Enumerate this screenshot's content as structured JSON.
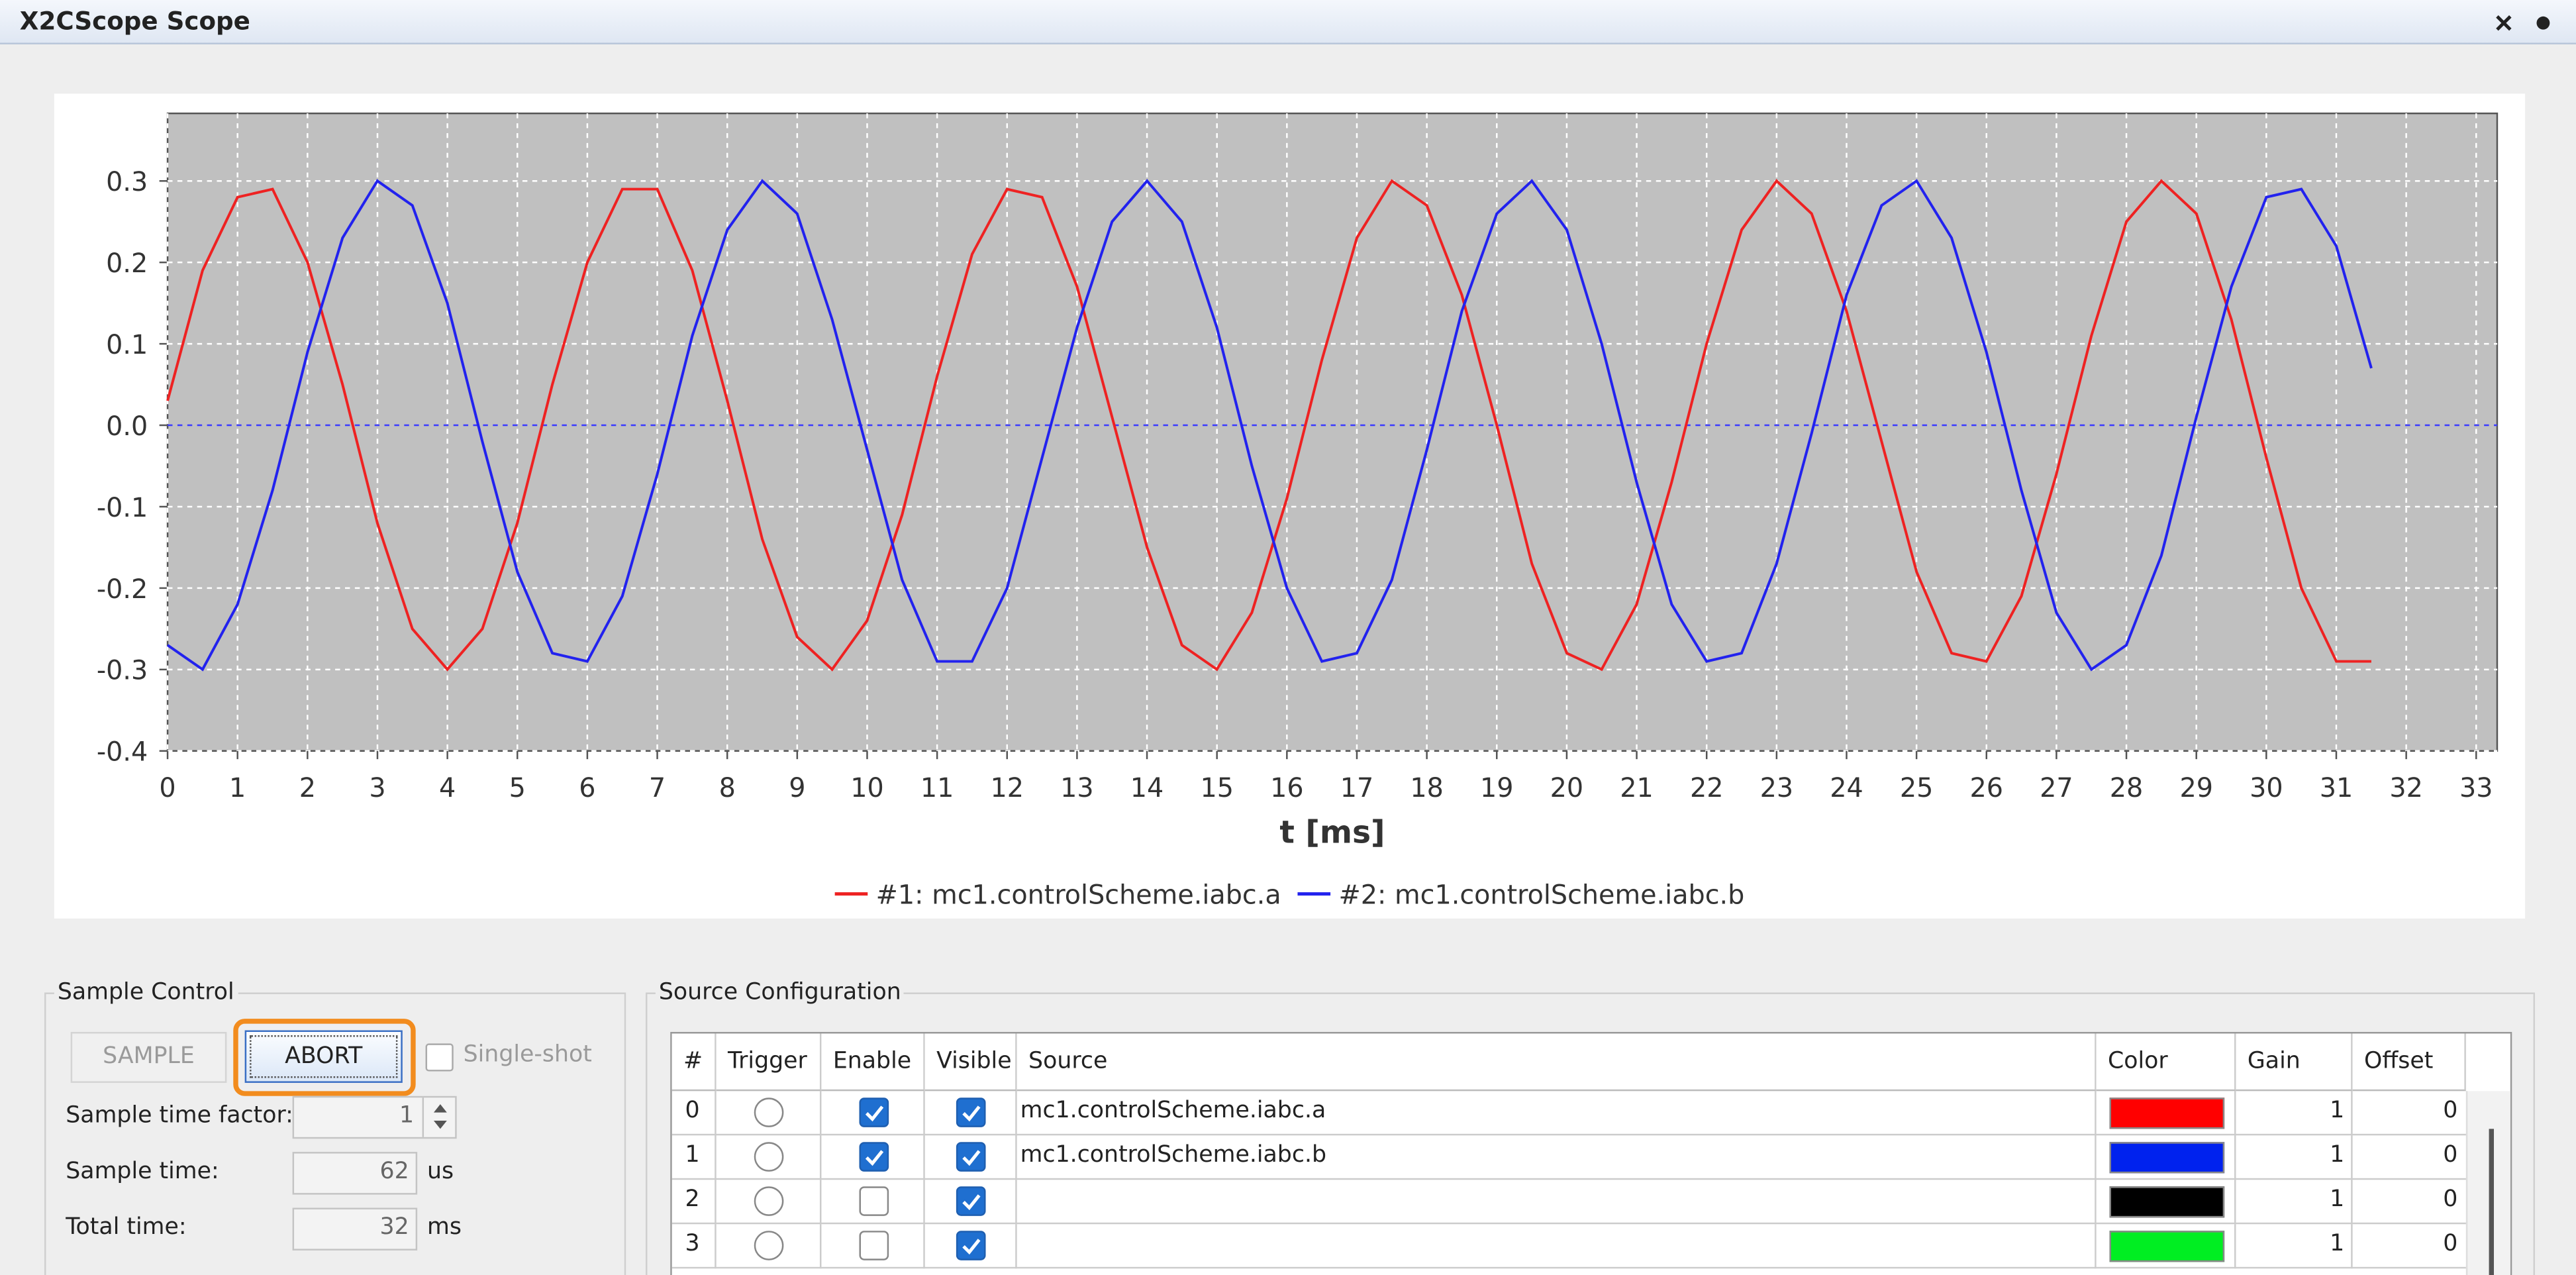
{
  "window": {
    "title": "X2CScope Scope"
  },
  "chart_data": {
    "type": "line",
    "xlabel": "t [ms]",
    "x": [
      0,
      0.5,
      1,
      1.5,
      2,
      2.5,
      3,
      3.5,
      4,
      4.5,
      5,
      5.5,
      6,
      6.5,
      7,
      7.5,
      8,
      8.5,
      9,
      9.5,
      10,
      10.5,
      11,
      11.5,
      12,
      12.5,
      13,
      13.5,
      14,
      14.5,
      15,
      15.5,
      16,
      16.5,
      17,
      17.5,
      18,
      18.5,
      19,
      19.5,
      20,
      20.5,
      21,
      21.5,
      22,
      22.5,
      23,
      23.5,
      24,
      24.5,
      25,
      25.5,
      26,
      26.5,
      27,
      27.5,
      28,
      28.5,
      29,
      29.5,
      30,
      30.5,
      31,
      31.5
    ],
    "series": [
      {
        "name": "#1: mc1.controlScheme.iabc.a",
        "color": "#ee2222",
        "values": [
          0.03,
          0.19,
          0.28,
          0.29,
          0.2,
          0.05,
          -0.12,
          -0.25,
          -0.3,
          -0.25,
          -0.12,
          0.05,
          0.2,
          0.29,
          0.29,
          0.19,
          0.03,
          -0.14,
          -0.26,
          -0.3,
          -0.24,
          -0.11,
          0.06,
          0.21,
          0.29,
          0.28,
          0.17,
          0.01,
          -0.15,
          -0.27,
          -0.3,
          -0.23,
          -0.09,
          0.08,
          0.23,
          0.3,
          0.27,
          0.16,
          0,
          -0.17,
          -0.28,
          -0.3,
          -0.22,
          -0.07,
          0.1,
          0.24,
          0.3,
          0.26,
          0.14,
          -0.02,
          -0.18,
          -0.28,
          -0.29,
          -0.21,
          -0.06,
          0.11,
          0.25,
          0.3,
          0.26,
          0.13,
          -0.04,
          -0.2,
          -0.29,
          -0.29
        ]
      },
      {
        "name": "#2: mc1.controlScheme.iabc.b",
        "color": "#2222ee",
        "values": [
          -0.27,
          -0.3,
          -0.22,
          -0.08,
          0.09,
          0.23,
          0.3,
          0.27,
          0.15,
          -0.02,
          -0.18,
          -0.28,
          -0.29,
          -0.21,
          -0.06,
          0.11,
          0.24,
          0.3,
          0.26,
          0.13,
          -0.03,
          -0.19,
          -0.29,
          -0.29,
          -0.2,
          -0.04,
          0.12,
          0.25,
          0.3,
          0.25,
          0.12,
          -0.05,
          -0.2,
          -0.29,
          -0.28,
          -0.19,
          -0.03,
          0.14,
          0.26,
          0.3,
          0.24,
          0.1,
          -0.07,
          -0.22,
          -0.29,
          -0.28,
          -0.17,
          -0.01,
          0.16,
          0.27,
          0.3,
          0.23,
          0.09,
          -0.08,
          -0.23,
          -0.3,
          -0.27,
          -0.16,
          0.01,
          0.17,
          0.28,
          0.29,
          0.22,
          0.07
        ]
      }
    ],
    "xlim": [
      0,
      33.3
    ],
    "ylim": [
      -0.4,
      0.383
    ],
    "xticks": [
      0,
      1,
      2,
      3,
      4,
      5,
      6,
      7,
      8,
      9,
      10,
      11,
      12,
      13,
      14,
      15,
      16,
      17,
      18,
      19,
      20,
      21,
      22,
      23,
      24,
      25,
      26,
      27,
      28,
      29,
      30,
      31,
      32,
      33
    ],
    "yticks": [
      -0.4,
      -0.3,
      -0.2,
      -0.1,
      {
        "value": 0,
        "label": "0.0"
      },
      0.1,
      0.2,
      0.3
    ],
    "grid": true,
    "zero_line": true,
    "legend": "bottom"
  },
  "sample_control": {
    "title": "Sample Control",
    "sample_button": "SAMPLE",
    "abort_button": "ABORT",
    "single_shot": "Single-shot",
    "sample_time_factor_label": "Sample time factor:",
    "sample_time_factor": 1,
    "sample_time_label": "Sample time:",
    "sample_time": 62,
    "sample_time_unit": "us",
    "total_time_label": "Total time:",
    "total_time": 32,
    "total_time_unit": "ms"
  },
  "source_configuration": {
    "title": "Source Configuration",
    "headers": [
      "#",
      "Trigger",
      "Enable",
      "Visible",
      "Source",
      "Color",
      "Gain",
      "Offset"
    ],
    "rows": [
      {
        "index": 0,
        "trigger": false,
        "enable": true,
        "visible": true,
        "source": "mc1.controlScheme.iabc.a",
        "color": "#ff0000",
        "gain": 1,
        "offset": 0
      },
      {
        "index": 1,
        "trigger": false,
        "enable": true,
        "visible": true,
        "source": "mc1.controlScheme.iabc.b",
        "color": "#0022ee",
        "gain": 1,
        "offset": 0
      },
      {
        "index": 2,
        "trigger": false,
        "enable": false,
        "visible": true,
        "color": "#000000",
        "gain": 1,
        "offset": 0
      },
      {
        "index": 3,
        "trigger": false,
        "enable": false,
        "visible": true,
        "color": "#00ee22",
        "gain": 1,
        "offset": 0
      }
    ]
  }
}
